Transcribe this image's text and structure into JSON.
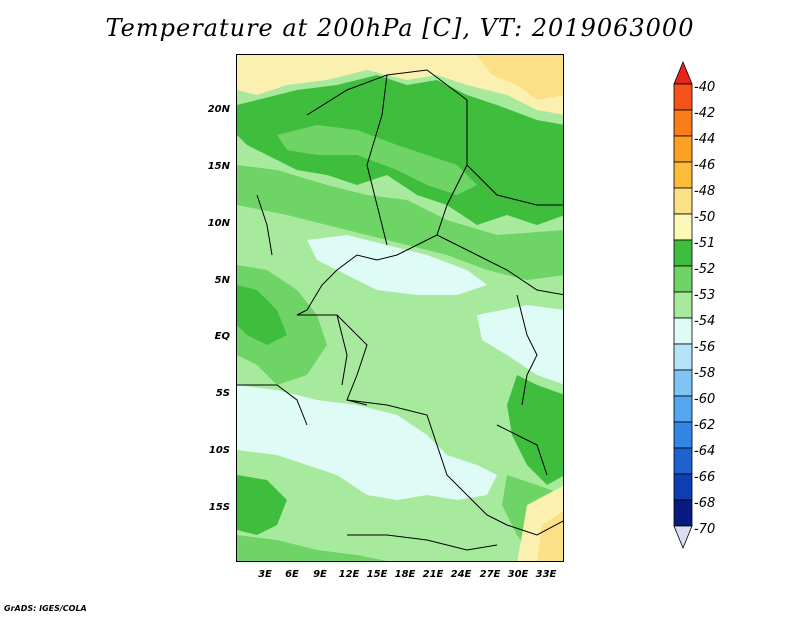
{
  "title": "Temperature at 200hPa [C], VT: 2019063000",
  "credit": "GrADS: IGES/COLA",
  "latitude_labels": [
    "20N",
    "15N",
    "10N",
    "5N",
    "EQ",
    "5S",
    "10S",
    "15S"
  ],
  "longitude_labels": [
    "3E",
    "6E",
    "9E",
    "12E",
    "15E",
    "18E",
    "21E",
    "24E",
    "27E",
    "30E",
    "33E"
  ],
  "colorbar": {
    "labels": [
      "-40",
      "-42",
      "-44",
      "-46",
      "-48",
      "-50",
      "-51",
      "-52",
      "-53",
      "-54",
      "-56",
      "-58",
      "-60",
      "-62",
      "-64",
      "-66",
      "-68",
      "-70"
    ],
    "colors": [
      "#e8241c",
      "#f6531a",
      "#fa7d1b",
      "#fca124",
      "#fcbd3c",
      "#fce088",
      "#fcf8b8",
      "#3fbe3e",
      "#6dd465",
      "#a7ea9d",
      "#dffbf5",
      "#b4e4fa",
      "#80c4f5",
      "#55a6f0",
      "#3486e6",
      "#1d62d0",
      "#0c3fb2",
      "#071a82",
      "#dcdcf2"
    ]
  },
  "map_palette": {
    "ocean_green": "#6dd465",
    "light_green": "#a7ea9d",
    "dark_green": "#3fbe3e",
    "pale_cyan": "#dffbf5",
    "yellow": "#fcf0b0",
    "orange": "#fce088"
  }
}
